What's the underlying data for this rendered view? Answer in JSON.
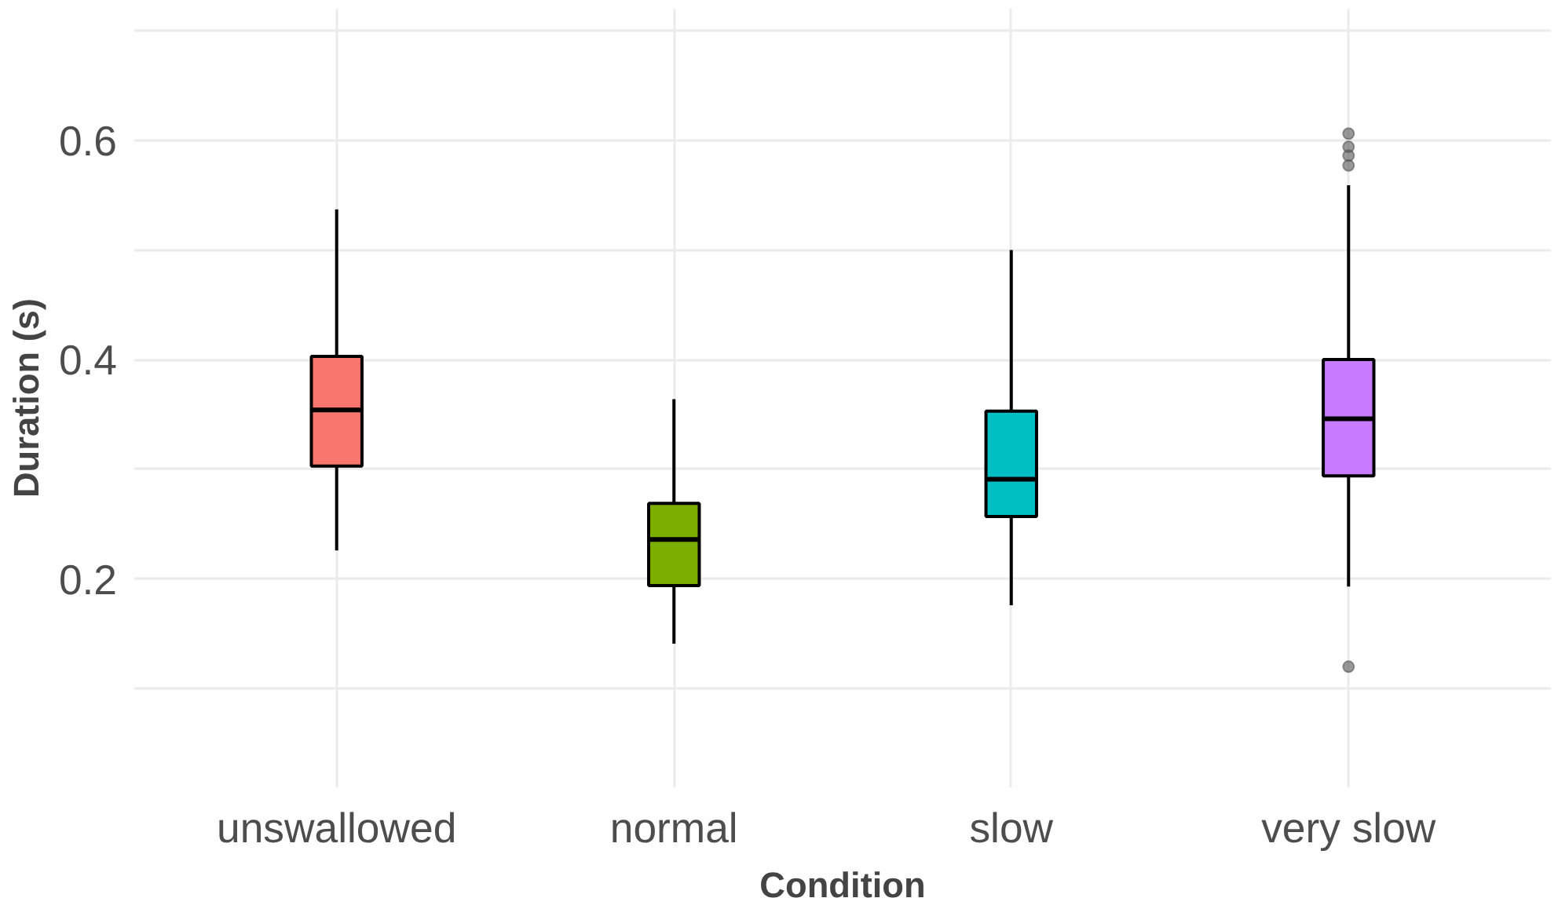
{
  "chart_data": {
    "type": "box",
    "xlabel": "Condition",
    "ylabel": "Duration (s)",
    "categories": [
      "unswallowed",
      "normal",
      "slow",
      "very slow"
    ],
    "colors": [
      "#f8766d",
      "#7cae00",
      "#00bfc4",
      "#c77cff"
    ],
    "boxes": [
      {
        "low": 0.226,
        "q1": 0.303,
        "median": 0.354,
        "q3": 0.403,
        "high": 0.537
      },
      {
        "low": 0.141,
        "q1": 0.194,
        "median": 0.236,
        "q3": 0.269,
        "high": 0.364
      },
      {
        "low": 0.176,
        "q1": 0.257,
        "median": 0.291,
        "q3": 0.353,
        "high": 0.5
      },
      {
        "low": 0.193,
        "q1": 0.294,
        "median": 0.346,
        "q3": 0.4,
        "high": 0.559,
        "outliers": [
          0.12,
          0.577,
          0.586,
          0.594,
          0.606
        ]
      }
    ],
    "ylim": [
      0.01,
      0.72
    ],
    "yticks": [
      {
        "value": 0.1,
        "label": null
      },
      0.2,
      {
        "value": 0.3,
        "label": null
      },
      0.4,
      {
        "value": 0.5,
        "label": null
      },
      0.6,
      {
        "value": 0.7,
        "label": null
      }
    ],
    "grid": true
  }
}
